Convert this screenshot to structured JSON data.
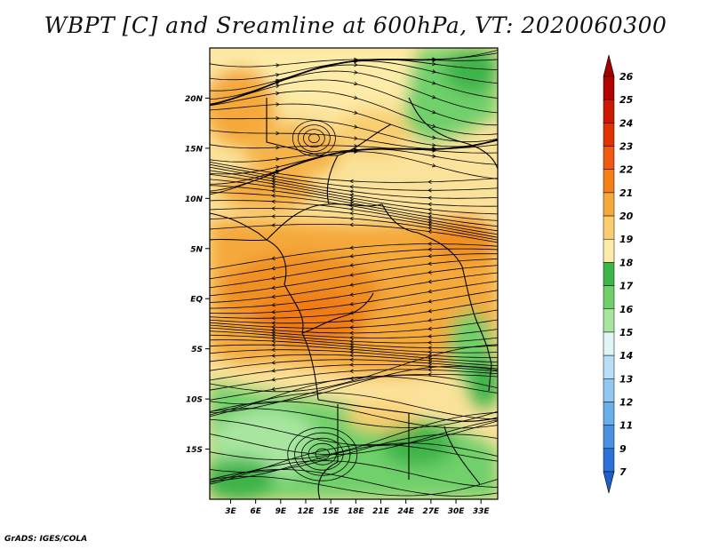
{
  "title": "WBPT [C] and Sreamline at 600hPa, VT: 2020060300",
  "footer": "GrADS: IGES/COLA",
  "map": {
    "lat_labels": [
      "20N",
      "15N",
      "10N",
      "5N",
      "EQ",
      "5S",
      "10S",
      "15S"
    ],
    "lat_values": [
      20,
      15,
      10,
      5,
      0,
      -5,
      -10,
      -15
    ],
    "lon_labels": [
      "3E",
      "6E",
      "9E",
      "12E",
      "15E",
      "18E",
      "21E",
      "24E",
      "27E",
      "30E",
      "33E"
    ],
    "lon_values": [
      3,
      6,
      9,
      12,
      15,
      18,
      21,
      24,
      27,
      30,
      33
    ],
    "lat_range": [
      -20,
      25
    ],
    "lon_range": [
      0.5,
      35
    ]
  },
  "colorbar": {
    "labels": [
      "26",
      "25",
      "24",
      "23",
      "22",
      "21",
      "20",
      "19",
      "18",
      "17",
      "16",
      "15",
      "14",
      "13",
      "12",
      "11",
      "9",
      "7"
    ],
    "colors": [
      "#b30000",
      "#cc1a00",
      "#e03300",
      "#ef5a10",
      "#f57f17",
      "#f5a93a",
      "#f9cd70",
      "#fdeca8",
      "#3cb44a",
      "#6fd06a",
      "#a8e6a0",
      "#e0f5f5",
      "#b8dff5",
      "#90c8f0",
      "#68b0ea",
      "#4a92e0",
      "#2c72d6"
    ],
    "top_arrow_color": "#a00000",
    "bottom_arrow_color": "#1e5fcc"
  }
}
